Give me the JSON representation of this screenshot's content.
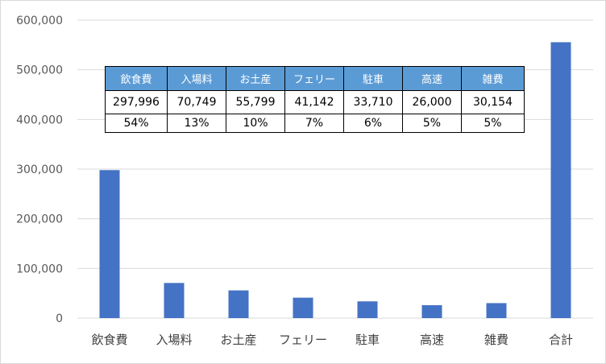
{
  "chart_data": {
    "type": "bar",
    "categories": [
      "飲食費",
      "入場料",
      "お土産",
      "フェリー",
      "駐車",
      "高速",
      "雑費",
      "合計"
    ],
    "values": [
      297996,
      70749,
      55799,
      41142,
      33710,
      26000,
      30154,
      555550
    ],
    "ylim": [
      0,
      600000
    ],
    "yticks": [
      "0",
      "100,000",
      "200,000",
      "300,000",
      "400,000",
      "500,000",
      "600,000"
    ],
    "bar_color": "#4472c4",
    "grid_color": "#d9d9d9",
    "grid": true
  },
  "table": {
    "headers": [
      "飲食費",
      "入場料",
      "お土産",
      "フェリー",
      "駐車",
      "高速",
      "雑費"
    ],
    "amounts": [
      "297,996",
      "70,749",
      "55,799",
      "41,142",
      "33,710",
      "26,000",
      "30,154"
    ],
    "percents": [
      "54%",
      "13%",
      "10%",
      "7%",
      "6%",
      "5%",
      "5%"
    ],
    "header_color": "#5b9bd5"
  }
}
